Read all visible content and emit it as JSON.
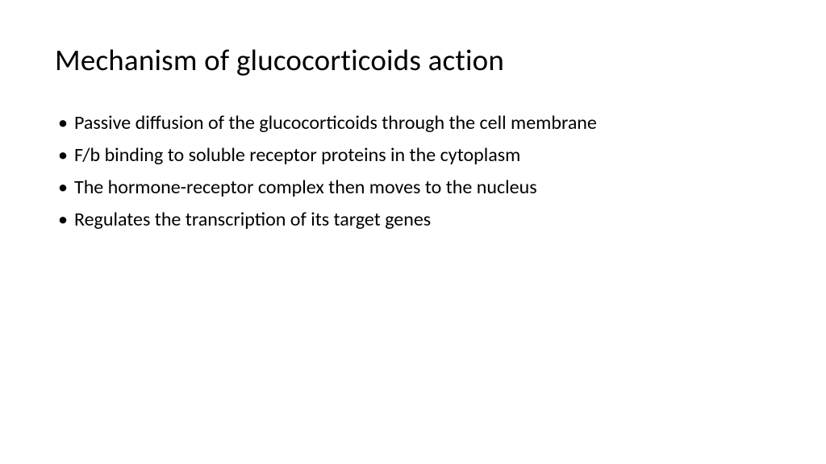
{
  "slide": {
    "title": "Mechanism of glucocorticoids action",
    "bullets": [
      "Passive diffusion of the glucocorticoids through the cell membrane",
      "F/b binding to soluble receptor proteins in the cytoplasm",
      "The hormone-receptor complex then moves to the nucleus",
      "Regulates the transcription of its target genes"
    ],
    "background_color": "#ffffff",
    "text_color": "#000000",
    "title_fontsize": 37,
    "body_fontsize": 24
  }
}
